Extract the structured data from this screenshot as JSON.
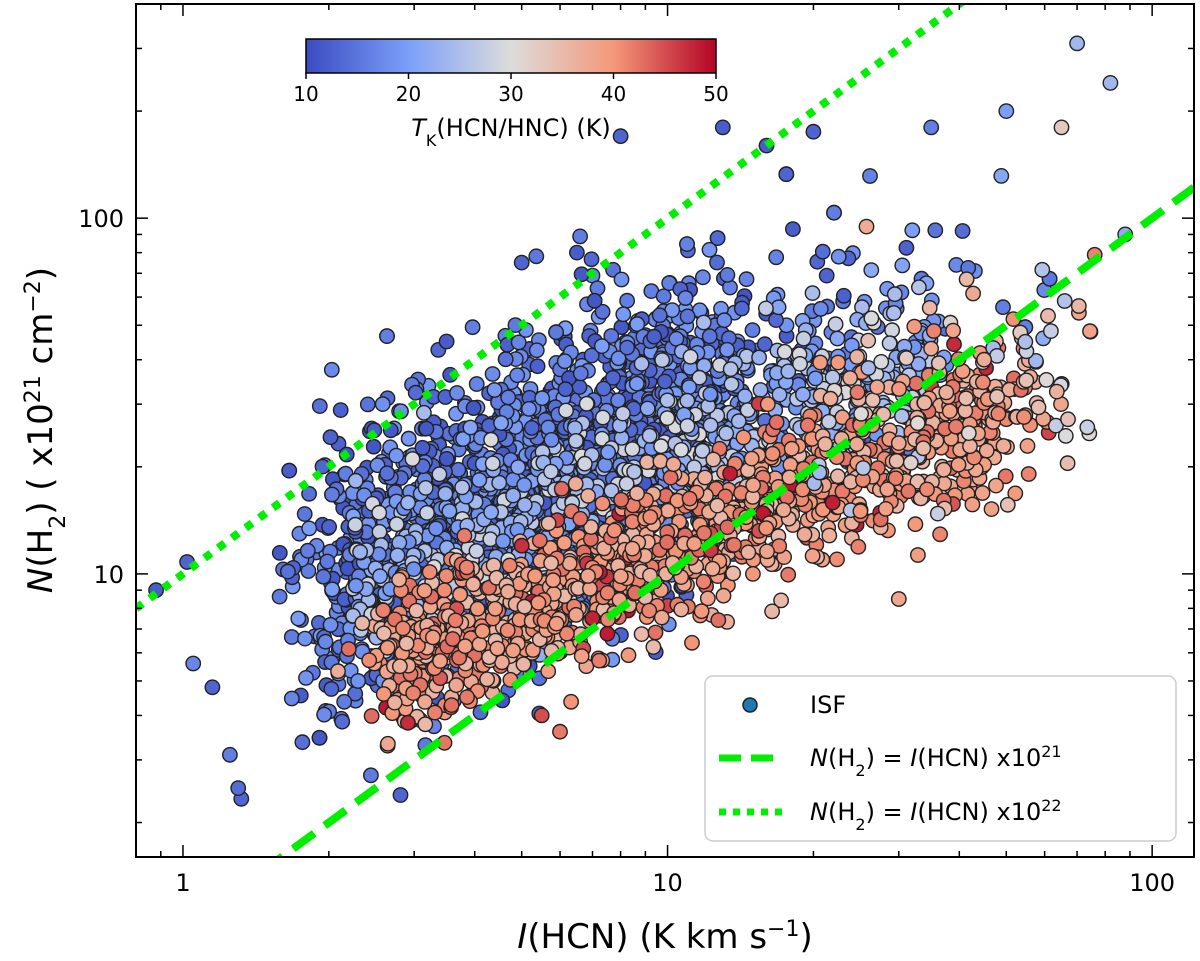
{
  "chart_data": {
    "type": "scatter",
    "x_scale": "log",
    "y_scale": "log",
    "xlim": [
      0.8,
      122
    ],
    "ylim": [
      1.6,
      400
    ],
    "xlabel": {
      "italic": "I",
      "rest": "(HCN) (K km s",
      "sup": "−1",
      "close": ")"
    },
    "ylabel": {
      "italic": "N",
      "open": "(H",
      "sub": "2",
      "mid": ") ( x10",
      "sup": "21",
      "unit": " cm",
      "sup2": "−2",
      "close": ")"
    },
    "x_ticks": [
      1,
      10,
      100
    ],
    "x_tick_labels": [
      "1",
      "10",
      "100"
    ],
    "y_ticks": [
      10,
      100
    ],
    "y_tick_labels": [
      "10",
      "100"
    ],
    "colorbar": {
      "range": [
        10,
        50
      ],
      "ticks": [
        10,
        20,
        30,
        40,
        50
      ],
      "tick_labels": [
        "10",
        "20",
        "30",
        "40",
        "50"
      ],
      "cmap": "coolwarm",
      "label": {
        "italic": "T",
        "sub": "K",
        "rest": "(HCN/HNC) (K)"
      }
    },
    "series": [
      {
        "name": "ISF",
        "kind": "scatter",
        "color_by": "T_K",
        "summary": "~4000 clumps; high N(H2) points cold (10-20 K), lower-right points warm (35-50 K)",
        "representative_points": [
          {
            "x": 0.88,
            "y": 9.0,
            "t": 12
          },
          {
            "x": 1.02,
            "y": 10.8,
            "t": 13
          },
          {
            "x": 1.05,
            "y": 5.6,
            "t": 17
          },
          {
            "x": 1.15,
            "y": 4.8,
            "t": 13
          },
          {
            "x": 1.25,
            "y": 3.1,
            "t": 16
          },
          {
            "x": 1.3,
            "y": 2.5,
            "t": 14
          },
          {
            "x": 3.5,
            "y": 45,
            "t": 12
          },
          {
            "x": 5.0,
            "y": 75,
            "t": 13
          },
          {
            "x": 6.5,
            "y": 80,
            "t": 12
          },
          {
            "x": 8.0,
            "y": 170,
            "t": 13
          },
          {
            "x": 13,
            "y": 180,
            "t": 12
          },
          {
            "x": 16,
            "y": 160,
            "t": 12
          },
          {
            "x": 20,
            "y": 175,
            "t": 13
          },
          {
            "x": 35,
            "y": 180,
            "t": 16
          },
          {
            "x": 50,
            "y": 200,
            "t": 20
          },
          {
            "x": 65,
            "y": 180,
            "t": 33
          },
          {
            "x": 70,
            "y": 310,
            "t": 24
          },
          {
            "x": 82,
            "y": 240,
            "t": 24
          },
          {
            "x": 88,
            "y": 90,
            "t": 22
          },
          {
            "x": 5.0,
            "y": 12,
            "t": 47
          },
          {
            "x": 7.0,
            "y": 7.5,
            "t": 48
          },
          {
            "x": 5.5,
            "y": 4.0,
            "t": 45
          },
          {
            "x": 6.0,
            "y": 3.6,
            "t": 42
          },
          {
            "x": 15,
            "y": 10,
            "t": 40
          },
          {
            "x": 25,
            "y": 15,
            "t": 40
          },
          {
            "x": 30,
            "y": 8.5,
            "t": 38
          },
          {
            "x": 45,
            "y": 40,
            "t": 37
          },
          {
            "x": 55,
            "y": 35,
            "t": 34
          }
        ]
      },
      {
        "name": "N(H2) = I(HCN) x10^21",
        "kind": "line",
        "style": "dashed",
        "color": "#00ee00",
        "slope": 1,
        "factor": 1
      },
      {
        "name": "N(H2) = I(HCN) x10^22",
        "kind": "line",
        "style": "dotted",
        "color": "#00ee00",
        "slope": 1,
        "factor": 10
      }
    ],
    "legend": {
      "position": "bottom-right",
      "entries": [
        {
          "marker": "circle",
          "prefix": "ISF"
        },
        {
          "marker": "dashed-line",
          "italic1": "N",
          "open": "(H",
          "sub": "2",
          "mid": ") = ",
          "italic2": "I",
          "rest": "(HCN) x10",
          "sup": "21"
        },
        {
          "marker": "dotted-line",
          "italic1": "N",
          "open": "(H",
          "sub": "2",
          "mid": ") = ",
          "italic2": "I",
          "rest": "(HCN) x10",
          "sup": "22"
        }
      ]
    }
  }
}
